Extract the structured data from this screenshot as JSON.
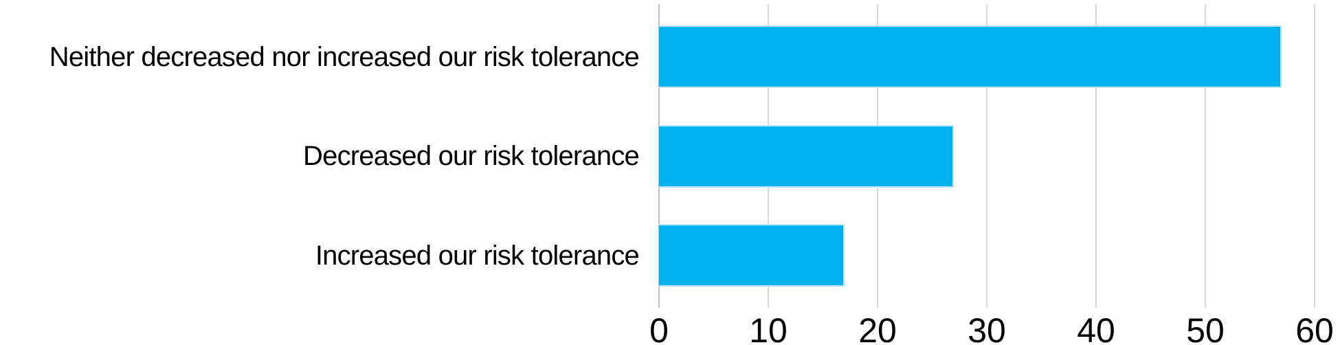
{
  "chart_data": {
    "type": "bar",
    "orientation": "horizontal",
    "title": "",
    "xlabel": "",
    "ylabel": "",
    "categories": [
      "Neither decreased nor increased our risk tolerance",
      "Decreased our risk tolerance",
      "Increased our risk tolerance"
    ],
    "values": [
      57,
      27,
      17
    ],
    "x_ticks": [
      "0",
      "10",
      "20",
      "30",
      "40",
      "50",
      "60"
    ],
    "x_tick_values": [
      0,
      10,
      20,
      30,
      40,
      50,
      60
    ],
    "xlim": [
      0,
      60
    ],
    "grid": "vertical-gridlines-on",
    "legend": "none",
    "colors": {
      "bar_fill": "#00b1f0",
      "bar_edge": "#b9e7fa",
      "gridline": "#d9d9d9",
      "zero_line": "#bfbfbf",
      "text": "#000000",
      "background": "#ffffff"
    }
  }
}
